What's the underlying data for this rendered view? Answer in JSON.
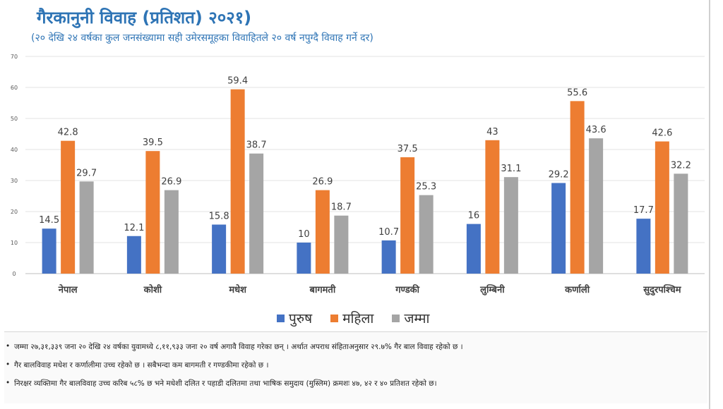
{
  "chart_data": {
    "type": "bar",
    "title": "गैरकानुनी विवाह (प्रतिशत) २०२१)",
    "subtitle": "(२० देखि २४ वर्षका कुल जनसंख्यामा सही उमेरसमूहका विवाहितले २० वर्ष नपुग्दै विवाह गर्ने दर)",
    "categories": [
      "नेपाल",
      "कोशी",
      "मधेश",
      "बागमती",
      "गण्डकी",
      "लुम्बिनी",
      "कर्णाली",
      "सुदुरपश्चिम"
    ],
    "series": [
      {
        "name": "पुरुष",
        "color": "#4472c4",
        "values": [
          14.5,
          12.1,
          15.8,
          10,
          10.7,
          16,
          29.2,
          17.7
        ]
      },
      {
        "name": "महिला",
        "color": "#ed7d31",
        "values": [
          42.8,
          39.5,
          59.4,
          26.9,
          37.5,
          43,
          55.6,
          42.6
        ]
      },
      {
        "name": "जम्मा",
        "color": "#a5a5a5",
        "values": [
          29.7,
          26.9,
          38.7,
          18.7,
          25.3,
          31.1,
          43.6,
          32.2
        ]
      }
    ],
    "ylim": [
      0,
      70
    ],
    "yticks": [
      0,
      10,
      20,
      30,
      40,
      50,
      60,
      70
    ],
    "grid": true,
    "legend_position": "bottom"
  },
  "notes": [
    "जम्मा २७,३१,३३९ जना २० देखि २४ वर्षका युवामध्ये ८,११,९३३ जना २० वर्ष अगावै विवाह गरेका छन् । अर्थात अपराध संहिताअनुसार २९.७% गैर बाल विवाह रहेको छ ।",
    "गैर बालविवाह मधेश र कर्णालीमा उच्च रहेको छ ।  सबैभन्दा कम बागमती र गण्डकीमा रहेको छ ।",
    "निरक्षर व्यक्तिमा गैर बालविवाह उच्च करिब ५८% छ भने मधेशी दलित र पहाडी दलितमा तथा भाषिक समुदाय (मुस्लिम) क्रमशः ४७, ४२ र ४० प्रतिशत रहेको छ।"
  ]
}
